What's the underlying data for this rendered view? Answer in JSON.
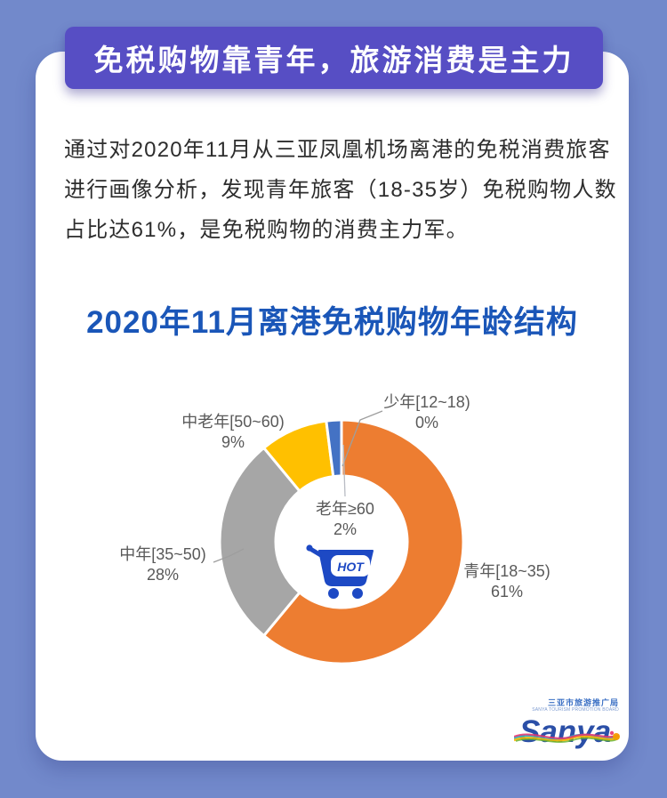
{
  "banner": {
    "title": "免税购物靠青年，旅游消费是主力"
  },
  "intro": {
    "paragraph": "通过对2020年11月从三亚凤凰机场离港的免税消费旅客进行画像分析，发现青年旅客（18-35岁）免税购物人数占比达61%，是免税购物的消费主力军。"
  },
  "chart_data": {
    "type": "pie",
    "subtype": "donut",
    "title": "2020年11月离港免税购物年龄结构",
    "categories": [
      "少年[12~18)",
      "青年[18~35)",
      "中年[35~50)",
      "中老年[50~60)",
      "老年≥60"
    ],
    "values": [
      0,
      61,
      28,
      9,
      2
    ],
    "percent_labels": [
      "0%",
      "61%",
      "28%",
      "9%",
      "2%"
    ],
    "colors": [
      "#5B9BD5",
      "#ED7D31",
      "#A6A6A6",
      "#FFC000",
      "#4472C4"
    ],
    "start_angle_deg": 0,
    "direction": "clockwise",
    "inner_radius_ratio": 0.54,
    "legend": "none",
    "center_icon": "shopping-cart",
    "center_icon_text": "HOT"
  },
  "logo": {
    "org_cn": "三亚市旅游推广局",
    "org_en": "SANYA TOURISM PROMOTION BOARD",
    "wordmark": "Sanya"
  },
  "colors": {
    "background": "#7289CB",
    "banner_bg": "#574EC4",
    "title_blue": "#1A56B8",
    "cart_blue": "#1D49C4",
    "label_gray": "#595959"
  }
}
